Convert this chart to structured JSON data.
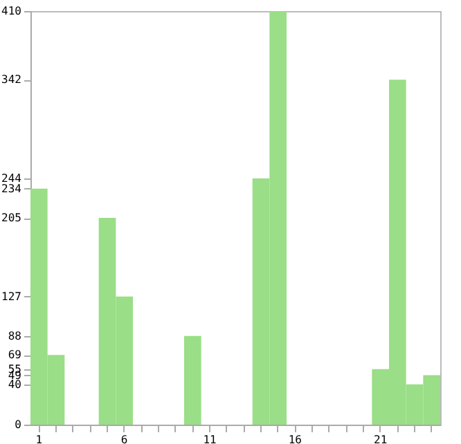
{
  "chart_data": {
    "type": "bar",
    "categories": [
      "1",
      null,
      null,
      null,
      null,
      "6",
      null,
      null,
      null,
      null,
      "11",
      null,
      null,
      null,
      null,
      "16",
      null,
      null,
      null,
      null,
      "21",
      null,
      null,
      null
    ],
    "values": [
      234,
      69,
      0,
      0,
      205,
      127,
      0,
      0,
      0,
      88,
      0,
      0,
      0,
      244,
      410,
      0,
      0,
      0,
      0,
      0,
      55,
      342,
      40,
      49
    ],
    "color": "#9ade87",
    "ylim": [
      0,
      410
    ],
    "yticks": [
      0,
      40,
      49,
      55,
      69,
      88,
      127,
      205,
      234,
      244,
      342,
      410
    ],
    "grid": false
  }
}
